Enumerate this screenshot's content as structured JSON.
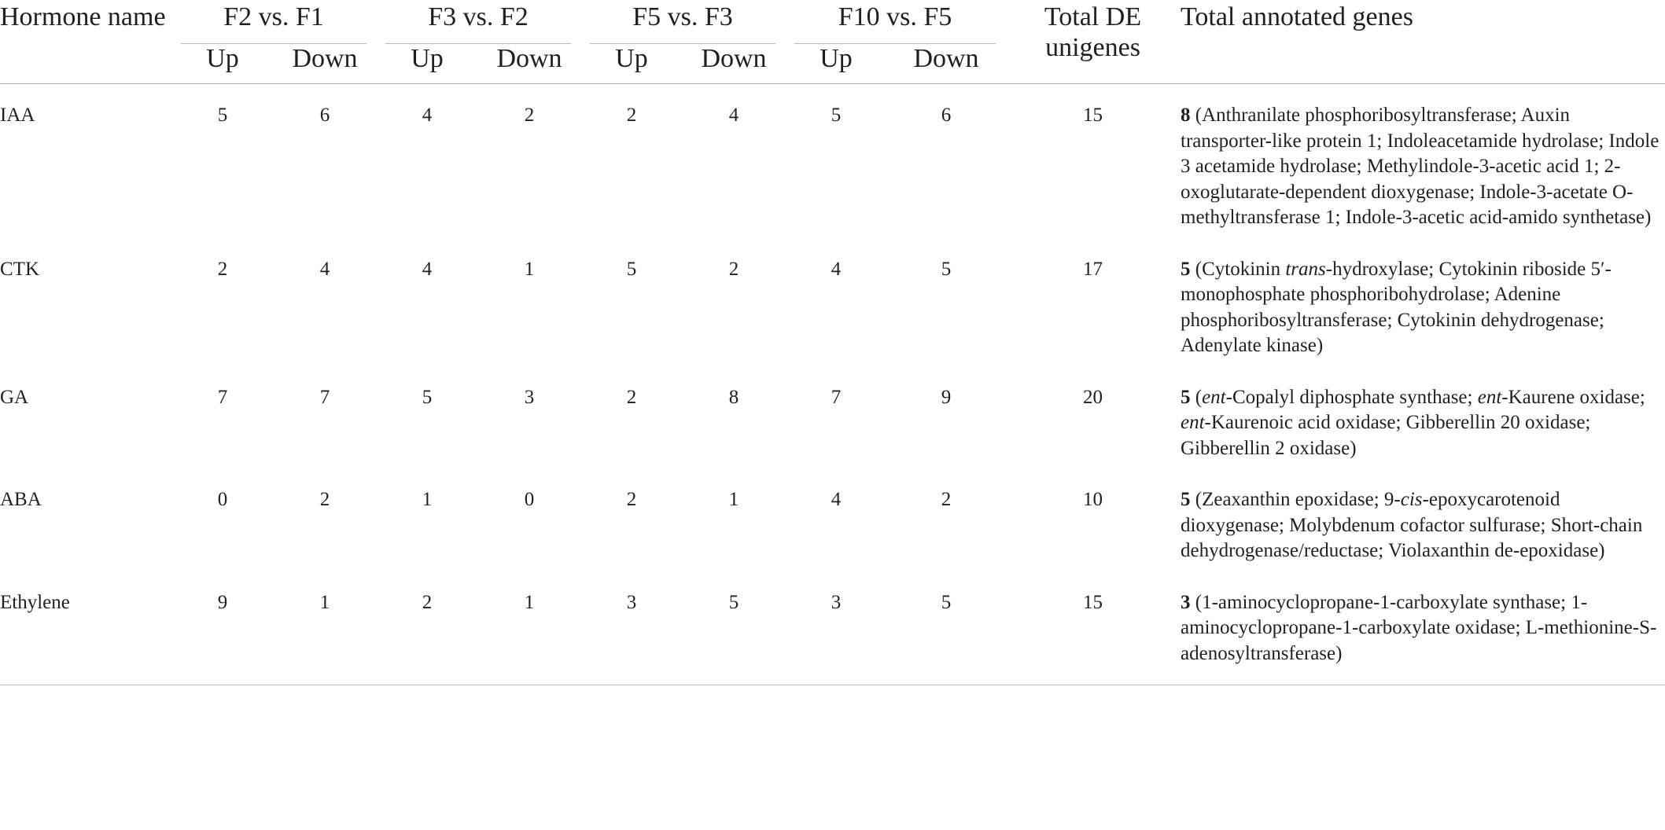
{
  "table": {
    "headers": {
      "hormone_name": "Hormone name",
      "groups": [
        "F2 vs. F1",
        "F3 vs. F2",
        "F5 vs. F3",
        "F10 vs. F5"
      ],
      "up": "Up",
      "down": "Down",
      "total_de": "Total DE unigenes",
      "total_annotated": "Total annotated genes"
    },
    "rows": [
      {
        "name": "IAA",
        "values": [
          "5",
          "6",
          "4",
          "2",
          "2",
          "4",
          "5",
          "6"
        ],
        "total": "15",
        "annot_count": "8",
        "annot_segments": [
          {
            "t": " (Anthranilate phosphoribosyltransferase; Auxin transporter-like protein 1; Indoleacetamide hydrolase; Indole 3 acetamide hydrolase; Methylindole-3-acetic acid 1; 2-oxoglutarate-dependent dioxygenase; Indole-3-acetate O-methyltransferase 1; Indole-3-acetic acid-amido synthetase)"
          }
        ]
      },
      {
        "name": "CTK",
        "values": [
          "2",
          "4",
          "4",
          "1",
          "5",
          "2",
          "4",
          "5"
        ],
        "total": "17",
        "annot_count": "5",
        "annot_segments": [
          {
            "t": " (Cytokinin "
          },
          {
            "t": "trans",
            "i": true
          },
          {
            "t": "-hydroxylase; Cytokinin riboside 5′-monophosphate phosphoribohydrolase; Adenine phosphoribosyltransferase; Cytokinin dehydrogenase; Adenylate kinase)"
          }
        ]
      },
      {
        "name": "GA",
        "values": [
          "7",
          "7",
          "5",
          "3",
          "2",
          "8",
          "7",
          "9"
        ],
        "total": "20",
        "annot_count": "5",
        "annot_segments": [
          {
            "t": " ("
          },
          {
            "t": "ent",
            "i": true
          },
          {
            "t": "-Copalyl diphosphate synthase; "
          },
          {
            "t": "ent",
            "i": true
          },
          {
            "t": "-Kaurene oxidase; "
          },
          {
            "t": "ent",
            "i": true
          },
          {
            "t": "-Kaurenoic acid oxidase; Gibberellin 20 oxidase; Gibberellin 2 oxidase)"
          }
        ]
      },
      {
        "name": "ABA",
        "values": [
          "0",
          "2",
          "1",
          "0",
          "2",
          "1",
          "4",
          "2"
        ],
        "total": "10",
        "annot_count": "5",
        "annot_segments": [
          {
            "t": " (Zeaxanthin epoxidase; 9-"
          },
          {
            "t": "cis",
            "i": true
          },
          {
            "t": "-epoxycarotenoid dioxygenase; Molybdenum cofactor sulfurase; Short-chain dehydrogenase/reductase; Violaxanthin de-epoxidase)"
          }
        ]
      },
      {
        "name": "Ethylene",
        "values": [
          "9",
          "1",
          "2",
          "1",
          "3",
          "5",
          "3",
          "5"
        ],
        "total": "15",
        "annot_count": "3",
        "annot_segments": [
          {
            "t": " (1-aminocyclopropane-1-carboxylate synthase; 1-aminocyclopropane-1-carboxylate oxidase; L-methionine-S-adenosyltransferase)"
          }
        ]
      }
    ]
  }
}
